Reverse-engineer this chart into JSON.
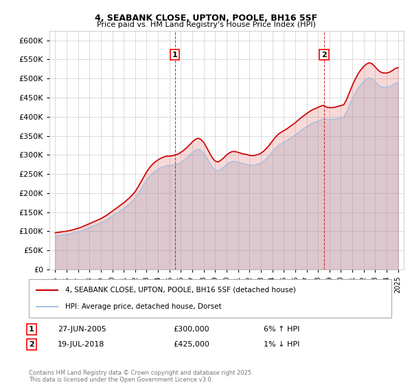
{
  "title": "4, SEABANK CLOSE, UPTON, POOLE, BH16 5SF",
  "subtitle": "Price paid vs. HM Land Registry's House Price Index (HPI)",
  "ylim": [
    0,
    625000
  ],
  "yticks": [
    0,
    50000,
    100000,
    150000,
    200000,
    250000,
    300000,
    350000,
    400000,
    450000,
    500000,
    550000,
    600000
  ],
  "xlim_start": 1994.5,
  "xlim_end": 2025.5,
  "xticks": [
    1995,
    1996,
    1997,
    1998,
    1999,
    2000,
    2001,
    2002,
    2003,
    2004,
    2005,
    2006,
    2007,
    2008,
    2009,
    2010,
    2011,
    2012,
    2013,
    2014,
    2015,
    2016,
    2017,
    2018,
    2019,
    2020,
    2021,
    2022,
    2023,
    2024,
    2025
  ],
  "hpi_color": "#a8c4e0",
  "price_color": "#cc0000",
  "sale1_x": 2005.48,
  "sale1_price": 300000,
  "sale2_x": 2018.54,
  "sale2_price": 425000,
  "marker1_label": "1",
  "marker2_label": "2",
  "annotation1_date": "27-JUN-2005",
  "annotation1_price": "£300,000",
  "annotation1_hpi": "6% ↑ HPI",
  "annotation2_date": "19-JUL-2018",
  "annotation2_price": "£425,000",
  "annotation2_hpi": "1% ↓ HPI",
  "legend_label1": "4, SEABANK CLOSE, UPTON, POOLE, BH16 5SF (detached house)",
  "legend_label2": "HPI: Average price, detached house, Dorset",
  "footnote": "Contains HM Land Registry data © Crown copyright and database right 2025.\nThis data is licensed under the Open Government Licence v3.0.",
  "background_color": "#ffffff",
  "grid_color": "#cccccc"
}
